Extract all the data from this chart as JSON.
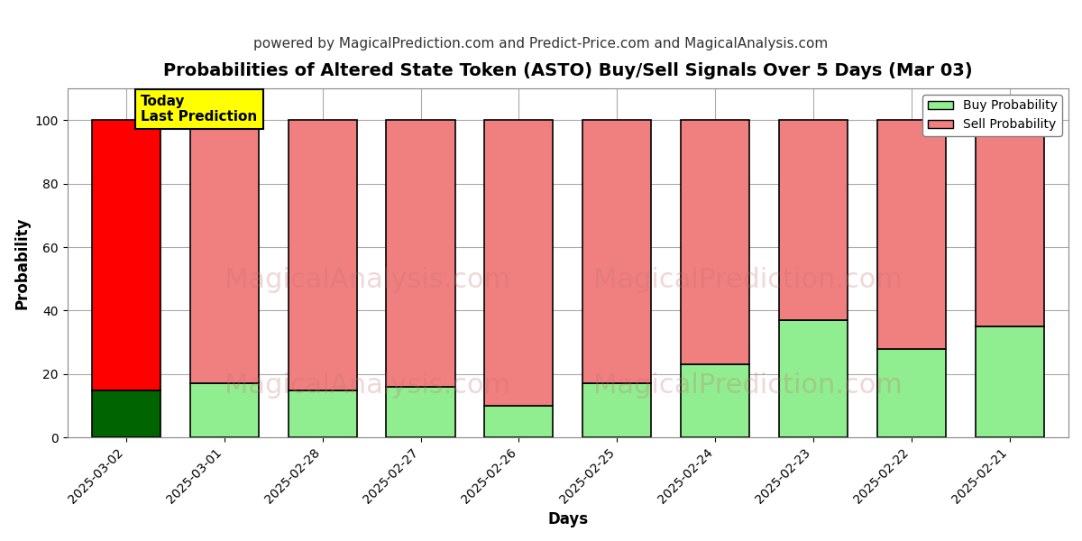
{
  "title": "Probabilities of Altered State Token (ASTO) Buy/Sell Signals Over 5 Days (Mar 03)",
  "subtitle": "powered by MagicalPrediction.com and Predict-Price.com and MagicalAnalysis.com",
  "xlabel": "Days",
  "ylabel": "Probability",
  "watermark1": "MagicalAnalysis.com",
  "watermark2": "MagicalPrediction.com",
  "categories": [
    "2025-03-02",
    "2025-03-01",
    "2025-02-28",
    "2025-02-27",
    "2025-02-26",
    "2025-02-25",
    "2025-02-24",
    "2025-02-23",
    "2025-02-22",
    "2025-02-21"
  ],
  "buy_values": [
    15,
    17,
    15,
    16,
    10,
    17,
    23,
    37,
    28,
    35
  ],
  "sell_values": [
    85,
    83,
    85,
    84,
    90,
    83,
    77,
    63,
    72,
    65
  ],
  "today_bar_index": 0,
  "buy_color_today": "#006400",
  "sell_color_today": "#ff0000",
  "buy_color_normal": "#90ee90",
  "sell_color_normal": "#f08080",
  "edge_color": "#000000",
  "ylim": [
    0,
    110
  ],
  "yticks": [
    0,
    20,
    40,
    60,
    80,
    100
  ],
  "dashed_line_y": 110,
  "today_label": "Today\nLast Prediction",
  "today_label_bg": "#ffff00",
  "legend_buy_color": "#90ee90",
  "legend_sell_color": "#f08080",
  "legend_buy_label": "Buy Probability",
  "legend_sell_label": "Sell Probability",
  "bg_color": "#ffffff",
  "grid_color": "#aaaaaa",
  "watermark_color": "#c87070",
  "title_fontsize": 14,
  "subtitle_fontsize": 11,
  "axis_label_fontsize": 12,
  "tick_fontsize": 10
}
